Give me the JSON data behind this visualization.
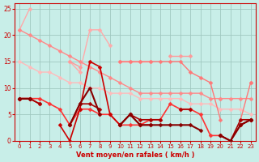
{
  "x": [
    0,
    1,
    2,
    3,
    4,
    5,
    6,
    7,
    8,
    9,
    10,
    11,
    12,
    13,
    14,
    15,
    16,
    17,
    18,
    19,
    20,
    21,
    22,
    23
  ],
  "series": [
    {
      "name": "light_pink_top",
      "color": "#FFAAAA",
      "linewidth": 1.0,
      "marker": "D",
      "markersize": 2.5,
      "y": [
        21,
        25,
        null,
        null,
        null,
        15,
        13,
        21,
        21,
        18,
        null,
        null,
        null,
        null,
        null,
        null,
        null,
        null,
        null,
        null,
        null,
        null,
        null,
        null
      ]
    },
    {
      "name": "light_pink_mid",
      "color": "#FF9999",
      "linewidth": 1.0,
      "marker": "D",
      "markersize": 2.5,
      "y": [
        null,
        null,
        null,
        null,
        null,
        15,
        14,
        null,
        null,
        null,
        15,
        15,
        15,
        15,
        null,
        16,
        16,
        16,
        null,
        null,
        8,
        null,
        null,
        11
      ]
    },
    {
      "name": "pink_diagonal_high",
      "color": "#FF8888",
      "linewidth": 1.0,
      "marker": "D",
      "markersize": 2.5,
      "y": [
        21,
        20,
        19,
        18,
        17,
        16,
        15,
        14,
        13,
        12,
        11,
        10,
        9,
        9,
        9,
        9,
        9,
        9,
        9,
        8,
        8,
        8,
        8,
        8
      ]
    },
    {
      "name": "pink_diagonal_low",
      "color": "#FFBBBB",
      "linewidth": 1.0,
      "marker": "D",
      "markersize": 2.5,
      "y": [
        15,
        14,
        13,
        13,
        12,
        11,
        11,
        10,
        10,
        9,
        9,
        9,
        8,
        8,
        8,
        8,
        8,
        7,
        7,
        7,
        6,
        6,
        6,
        5
      ]
    },
    {
      "name": "medium_pink",
      "color": "#FF7777",
      "linewidth": 1.0,
      "marker": "D",
      "markersize": 2.5,
      "y": [
        null,
        null,
        null,
        null,
        null,
        null,
        null,
        null,
        null,
        null,
        15,
        15,
        15,
        15,
        15,
        15,
        15,
        13,
        12,
        11,
        4,
        null,
        4,
        11
      ]
    },
    {
      "name": "red_main",
      "color": "#FF3333",
      "linewidth": 1.2,
      "marker": "D",
      "markersize": 2.5,
      "y": [
        8,
        8,
        8,
        7,
        6,
        3,
        6,
        6,
        5,
        5,
        3,
        3,
        3,
        4,
        4,
        7,
        6,
        6,
        5,
        1,
        1,
        0,
        3,
        4
      ]
    },
    {
      "name": "dark_red1",
      "color": "#CC0000",
      "linewidth": 1.2,
      "marker": "D",
      "markersize": 2.5,
      "y": [
        8,
        8,
        7,
        null,
        3,
        0,
        6,
        15,
        14,
        5,
        3,
        5,
        3,
        3,
        null,
        null,
        null,
        null,
        null,
        null,
        null,
        null,
        3,
        4
      ]
    },
    {
      "name": "dark_red2",
      "color": "#AA0000",
      "linewidth": 1.2,
      "marker": "D",
      "markersize": 2.5,
      "y": [
        8,
        8,
        7,
        null,
        null,
        3,
        7,
        7,
        6,
        null,
        3,
        5,
        4,
        4,
        4,
        null,
        6,
        6,
        null,
        null,
        1,
        0,
        4,
        4
      ]
    },
    {
      "name": "darkest_red",
      "color": "#880000",
      "linewidth": 1.5,
      "marker": "D",
      "markersize": 2.5,
      "y": [
        8,
        8,
        null,
        null,
        null,
        3,
        7,
        10,
        5,
        null,
        3,
        5,
        3,
        3,
        3,
        3,
        3,
        3,
        2,
        null,
        1,
        0,
        3,
        4
      ]
    }
  ],
  "xlim": [
    -0.5,
    23.5
  ],
  "ylim": [
    0,
    26
  ],
  "yticks": [
    0,
    5,
    10,
    15,
    20,
    25
  ],
  "xticks": [
    0,
    1,
    2,
    3,
    4,
    5,
    6,
    7,
    8,
    9,
    10,
    11,
    12,
    13,
    14,
    15,
    16,
    17,
    18,
    19,
    20,
    21,
    22,
    23
  ],
  "xlabel": "Vent moyen/en rafales ( km/h )",
  "background_color": "#C8EEE8",
  "grid_color": "#A0C8C0",
  "spine_color": "#CC0000",
  "tick_color": "#CC0000",
  "label_color": "#CC0000"
}
